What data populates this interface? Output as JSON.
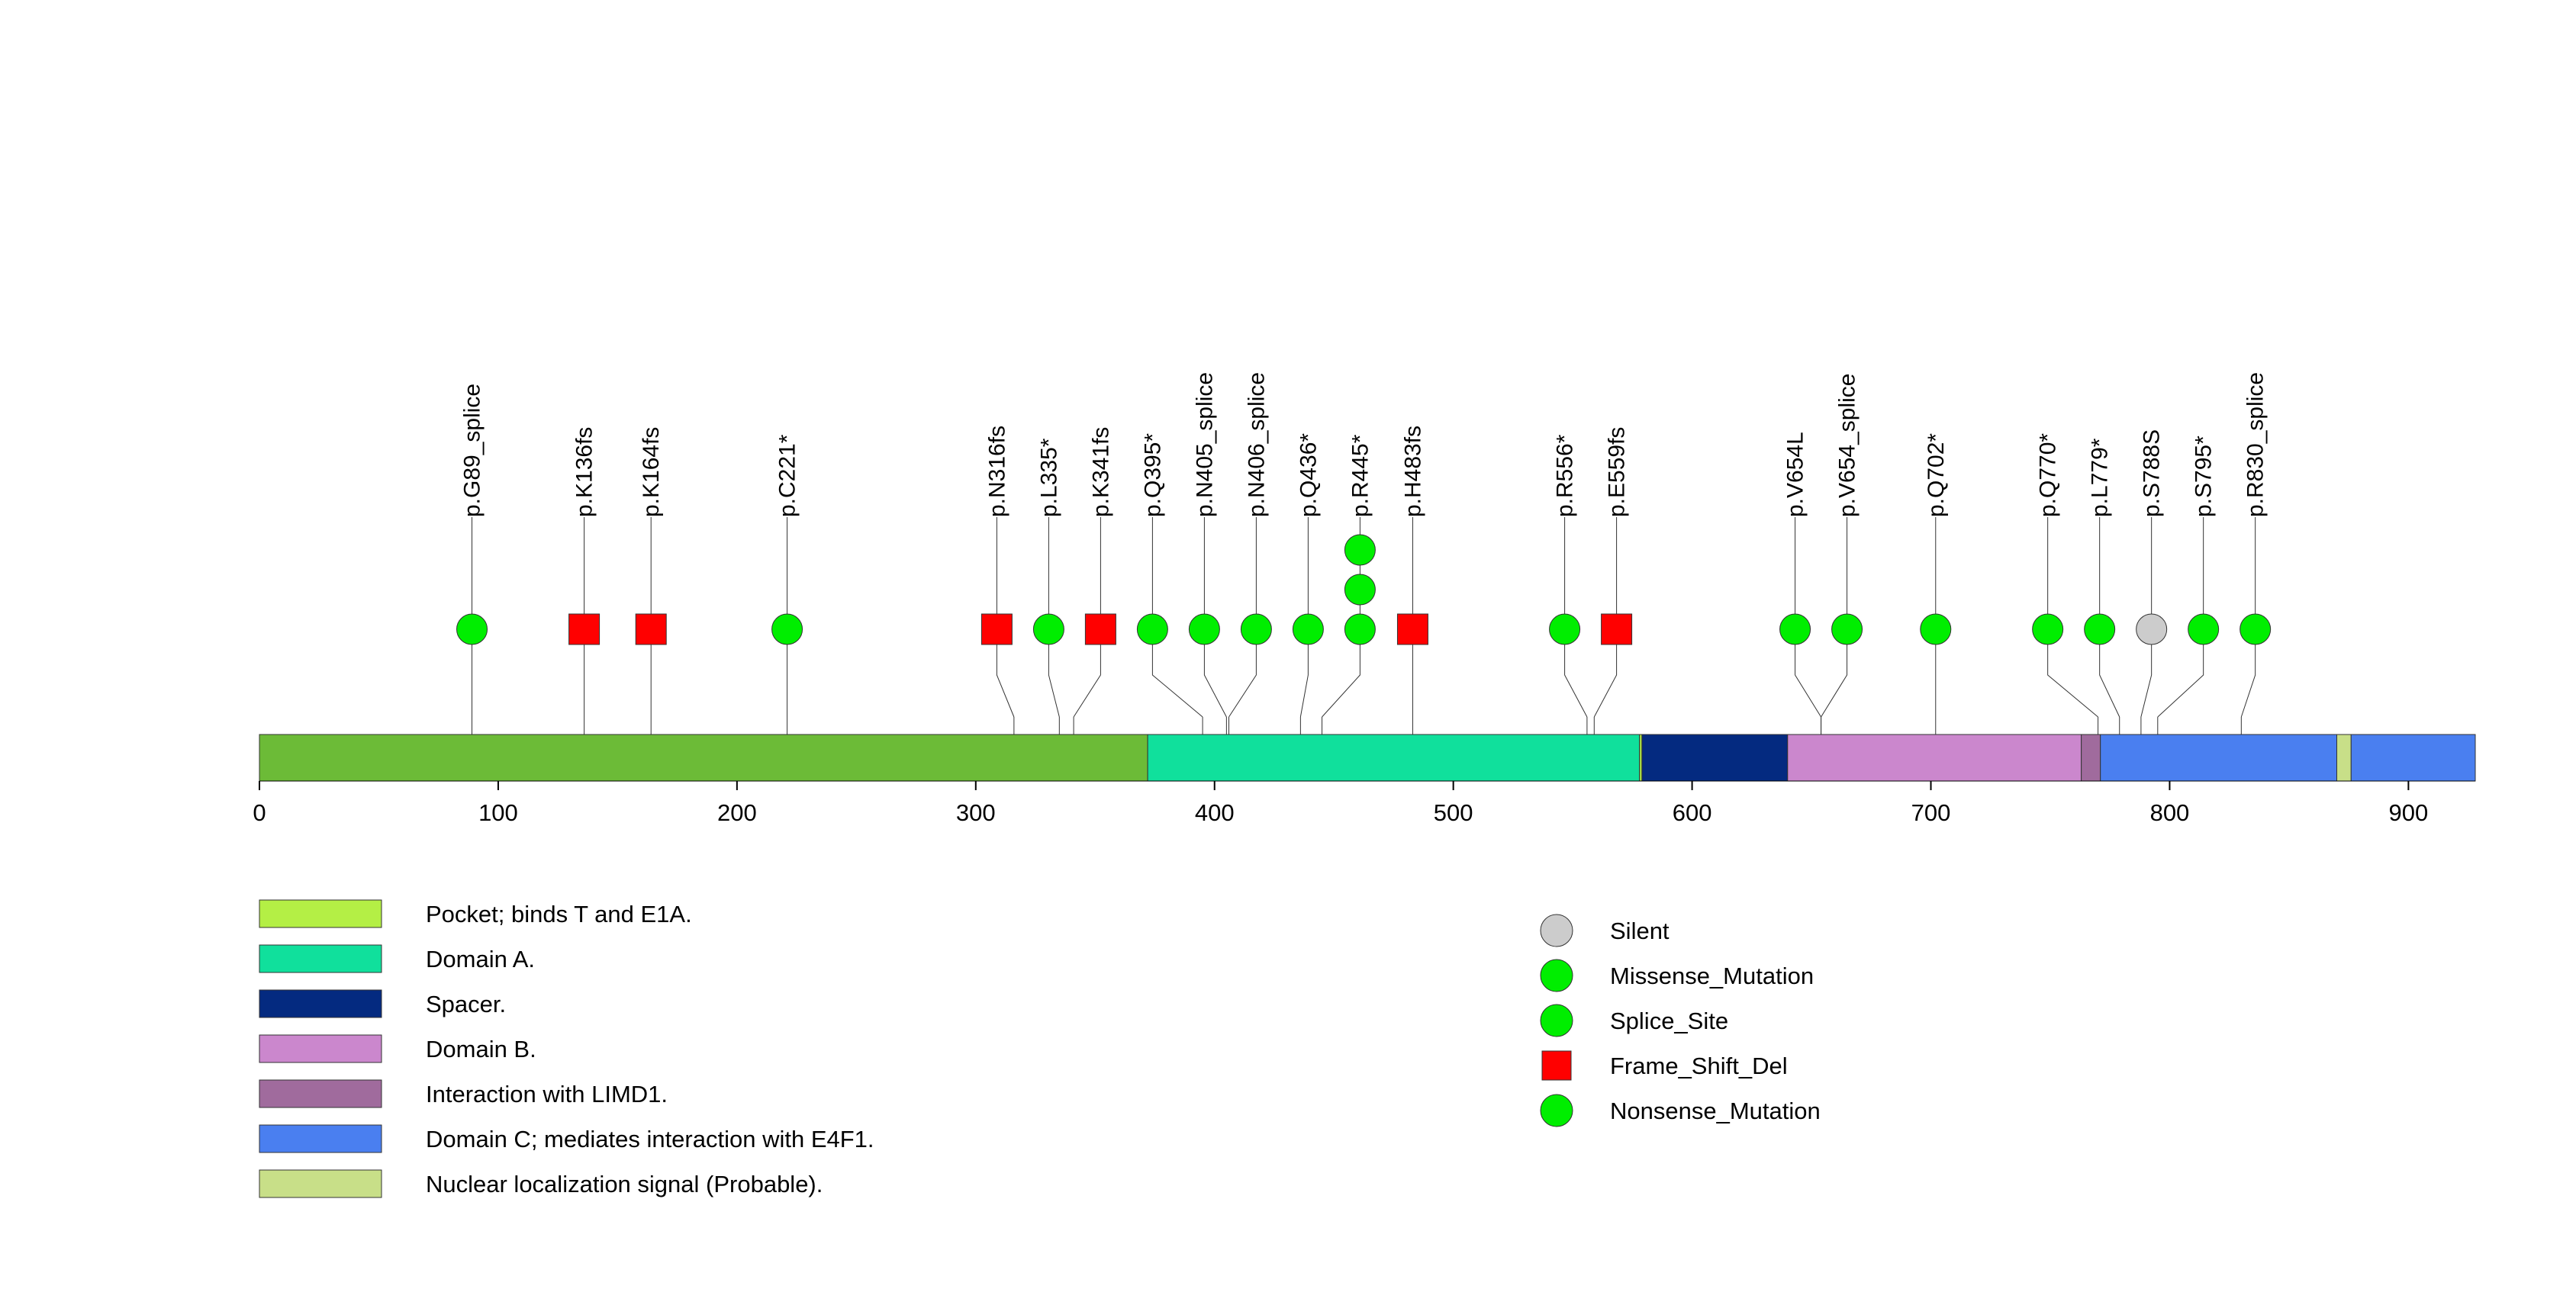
{
  "chart_data": {
    "type": "lollipop",
    "protein_length": 928,
    "axis": {
      "range": [
        0,
        928
      ],
      "ticks": [
        0,
        100,
        200,
        300,
        400,
        500,
        600,
        700,
        800,
        900
      ]
    },
    "domains": [
      {
        "name": "Pocket; binds T and E1A.",
        "start": 0,
        "end": 372,
        "color": "#6cbb37"
      },
      {
        "name": "Domain A.",
        "start": 372,
        "end": 578,
        "color": "#10e09c"
      },
      {
        "name": "Pocket; binds T and E1A.",
        "start": 578,
        "end": 579,
        "color": "#b4ef45"
      },
      {
        "name": "Spacer.",
        "start": 579,
        "end": 640,
        "color": "#042a80"
      },
      {
        "name": "Domain B.",
        "start": 640,
        "end": 763,
        "color": "#cb87cd"
      },
      {
        "name": "Interaction with LIMD1.",
        "start": 763,
        "end": 771,
        "color": "#a06b9d"
      },
      {
        "name": "Domain C; mediates interaction with E4F1.",
        "start": 771,
        "end": 870,
        "color": "#4a7ff0"
      },
      {
        "name": "Nuclear localization signal (Probable).",
        "start": 870,
        "end": 876,
        "color": "#c8df88"
      },
      {
        "name": "Domain C; mediates interaction with E4F1.",
        "start": 876,
        "end": 928,
        "color": "#4a7ff0"
      }
    ],
    "mutations": [
      {
        "label": "p.G89_splice",
        "position": 89,
        "type": "Splice_Site",
        "count": 1
      },
      {
        "label": "p.K136fs",
        "position": 136,
        "type": "Frame_Shift_Del",
        "count": 1
      },
      {
        "label": "p.K164fs",
        "position": 164,
        "type": "Frame_Shift_Del",
        "count": 1
      },
      {
        "label": "p.C221*",
        "position": 221,
        "type": "Nonsense_Mutation",
        "count": 1
      },
      {
        "label": "p.N316fs",
        "position": 316,
        "type": "Frame_Shift_Del",
        "count": 1
      },
      {
        "label": "p.L335*",
        "position": 335,
        "type": "Nonsense_Mutation",
        "count": 1
      },
      {
        "label": "p.K341fs",
        "position": 341,
        "type": "Frame_Shift_Del",
        "count": 1
      },
      {
        "label": "p.Q395*",
        "position": 395,
        "type": "Nonsense_Mutation",
        "count": 1
      },
      {
        "label": "p.N405_splice",
        "position": 405,
        "type": "Splice_Site",
        "count": 1
      },
      {
        "label": "p.N406_splice",
        "position": 406,
        "type": "Splice_Site",
        "count": 1
      },
      {
        "label": "p.Q436*",
        "position": 436,
        "type": "Nonsense_Mutation",
        "count": 1
      },
      {
        "label": "p.R445*",
        "position": 445,
        "type": "Nonsense_Mutation",
        "count": 3
      },
      {
        "label": "p.H483fs",
        "position": 483,
        "type": "Frame_Shift_Del",
        "count": 1
      },
      {
        "label": "p.R556*",
        "position": 556,
        "type": "Nonsense_Mutation",
        "count": 1
      },
      {
        "label": "p.E559fs",
        "position": 559,
        "type": "Frame_Shift_Del",
        "count": 1
      },
      {
        "label": "p.V654L",
        "position": 654,
        "type": "Missense_Mutation",
        "count": 1
      },
      {
        "label": "p.V654_splice",
        "position": 654,
        "type": "Splice_Site",
        "count": 1
      },
      {
        "label": "p.Q702*",
        "position": 702,
        "type": "Nonsense_Mutation",
        "count": 1
      },
      {
        "label": "p.Q770*",
        "position": 770,
        "type": "Nonsense_Mutation",
        "count": 1
      },
      {
        "label": "p.L779*",
        "position": 779,
        "type": "Nonsense_Mutation",
        "count": 1
      },
      {
        "label": "p.S788S",
        "position": 788,
        "type": "Silent",
        "count": 1
      },
      {
        "label": "p.S795*",
        "position": 795,
        "type": "Nonsense_Mutation",
        "count": 1
      },
      {
        "label": "p.R830_splice",
        "position": 830,
        "type": "Splice_Site",
        "count": 1
      }
    ],
    "domain_legend": [
      {
        "label": "Pocket; binds T and E1A.",
        "color": "#b4ef45"
      },
      {
        "label": "Domain A.",
        "color": "#10e09c"
      },
      {
        "label": "Spacer.",
        "color": "#042a80"
      },
      {
        "label": "Domain B.",
        "color": "#cb87cd"
      },
      {
        "label": "Interaction with LIMD1.",
        "color": "#a06b9d"
      },
      {
        "label": "Domain C; mediates interaction with E4F1.",
        "color": "#4a7ff0"
      },
      {
        "label": "Nuclear localization signal (Probable).",
        "color": "#c8df88"
      }
    ],
    "mutation_legend": [
      {
        "label": "Silent",
        "shape": "circle",
        "color": "#cccccc"
      },
      {
        "label": "Missense_Mutation",
        "shape": "circle",
        "color": "#00ee00"
      },
      {
        "label": "Splice_Site",
        "shape": "circle",
        "color": "#00ee00"
      },
      {
        "label": "Frame_Shift_Del",
        "shape": "square",
        "color": "#ff0000"
      },
      {
        "label": "Nonsense_Mutation",
        "shape": "circle",
        "color": "#00ee00"
      }
    ]
  }
}
